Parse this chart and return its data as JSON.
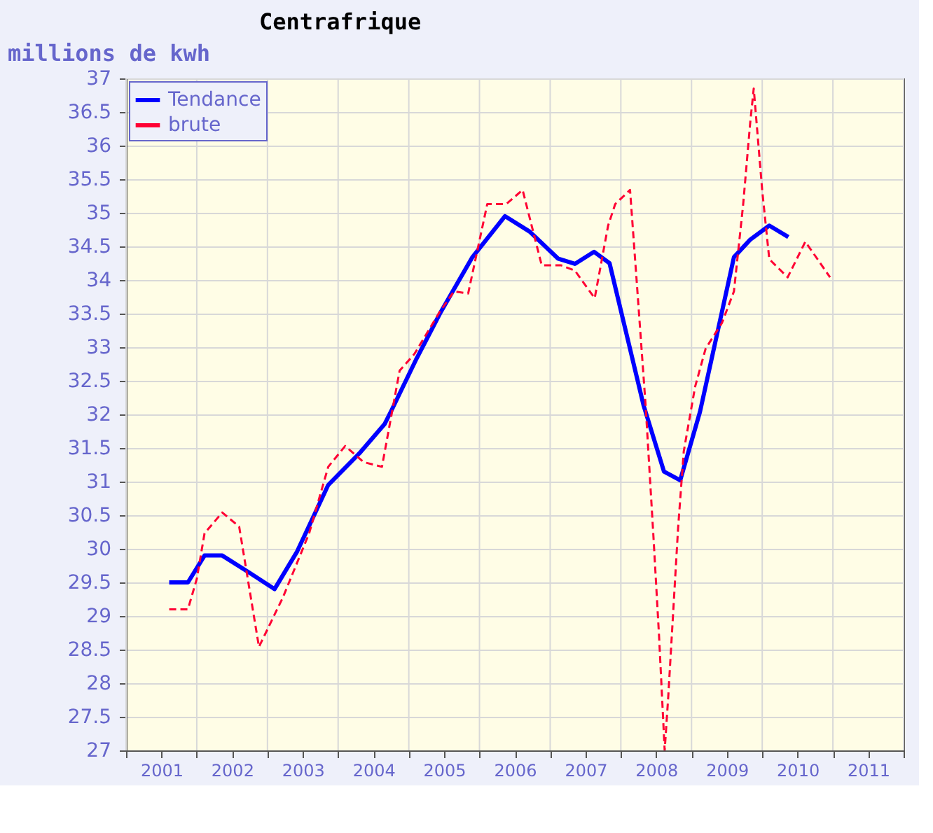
{
  "chart_data": {
    "type": "line",
    "title": "Centrafrique",
    "ylabel": "millions de kwh",
    "xlim": [
      2001,
      2012
    ],
    "ylim": [
      27,
      37
    ],
    "xticks": [
      {
        "value": 2001,
        "label": null
      },
      {
        "value": 2002,
        "label": null
      },
      {
        "value": 2003,
        "label": null
      },
      {
        "value": 2004,
        "label": null
      },
      {
        "value": 2005,
        "label": null
      },
      {
        "value": 2006,
        "label": null
      },
      {
        "value": 2007,
        "label": null
      },
      {
        "value": 2008,
        "label": null
      },
      {
        "value": 2009,
        "label": null
      },
      {
        "value": 2010,
        "label": null
      },
      {
        "value": 2011,
        "label": null
      },
      {
        "value": 2012,
        "label": null
      },
      {
        "value": 2001.5,
        "label": "2001"
      },
      {
        "value": 2002.5,
        "label": "2002"
      },
      {
        "value": 2003.5,
        "label": "2003"
      },
      {
        "value": 2004.5,
        "label": "2004"
      },
      {
        "value": 2005.5,
        "label": "2005"
      },
      {
        "value": 2006.5,
        "label": "2006"
      },
      {
        "value": 2007.5,
        "label": "2007"
      },
      {
        "value": 2008.5,
        "label": "2008"
      },
      {
        "value": 2009.5,
        "label": "2009"
      },
      {
        "value": 2010.5,
        "label": "2010"
      },
      {
        "value": 2011.5,
        "label": "2011"
      }
    ],
    "yticks": [
      27,
      27.5,
      28,
      28.5,
      29,
      29.5,
      30,
      30.5,
      31,
      31.5,
      32,
      32.5,
      33,
      33.5,
      34,
      34.5,
      35,
      35.5,
      36,
      36.5,
      37
    ],
    "grid": true,
    "legend": "top left",
    "marker": "none",
    "series": [
      {
        "name": "Tendance",
        "color": "#0000ff",
        "line_style": "solid",
        "x": [
          2001.61,
          2001.875,
          2002.11,
          2002.36,
          2002.75,
          2003.1,
          2003.42,
          2003.86,
          2004.3,
          2004.66,
          2004.76,
          2005.1,
          2005.44,
          2005.9,
          2006.36,
          2006.71,
          2007.11,
          2007.35,
          2007.62,
          2007.84,
          2008.32,
          2008.61,
          2008.84,
          2009.12,
          2009.6,
          2009.83,
          2010.1,
          2010.37
        ],
        "values": [
          29.5,
          29.5,
          29.9,
          29.9,
          29.64,
          29.4,
          29.96,
          30.95,
          31.42,
          31.86,
          32.07,
          32.81,
          33.5,
          34.34,
          34.95,
          34.72,
          34.32,
          34.24,
          34.42,
          34.25,
          32.14,
          31.15,
          31.02,
          32.04,
          34.34,
          34.6,
          34.81,
          34.64
        ]
      },
      {
        "name": "brute",
        "color": "#ff0033",
        "line_style": "dashed",
        "x": [
          2001.61,
          2001.875,
          2002.0,
          2002.11,
          2002.36,
          2002.6,
          2002.88,
          2003.22,
          2003.59,
          2003.86,
          2004.1,
          2004.36,
          2004.62,
          2004.87,
          2005.08,
          2005.44,
          2005.64,
          2005.84,
          2006.11,
          2006.38,
          2006.61,
          2006.88,
          2007.15,
          2007.35,
          2007.52,
          2007.63,
          2007.82,
          2007.92,
          2008.13,
          2008.22,
          2008.35,
          2008.46,
          2008.54,
          2008.62,
          2008.67,
          2008.81,
          2008.89,
          2009.05,
          2009.2,
          2009.43,
          2009.6,
          2009.73,
          2009.83,
          2009.88,
          2010.0,
          2010.1,
          2010.36,
          2010.61,
          2010.96
        ],
        "values": [
          29.1,
          29.1,
          29.55,
          30.23,
          30.54,
          30.33,
          28.54,
          29.28,
          30.23,
          31.22,
          31.53,
          31.29,
          31.22,
          32.65,
          32.9,
          33.53,
          33.83,
          33.8,
          35.13,
          35.13,
          35.34,
          34.22,
          34.22,
          34.14,
          33.89,
          33.73,
          34.81,
          35.13,
          35.34,
          34.04,
          32.14,
          30.2,
          28.71,
          27.0,
          27.79,
          30.31,
          31.45,
          32.41,
          32.98,
          33.36,
          33.83,
          35.12,
          36.34,
          36.85,
          35.33,
          34.31,
          34.04,
          34.57,
          34.04
        ]
      }
    ]
  }
}
